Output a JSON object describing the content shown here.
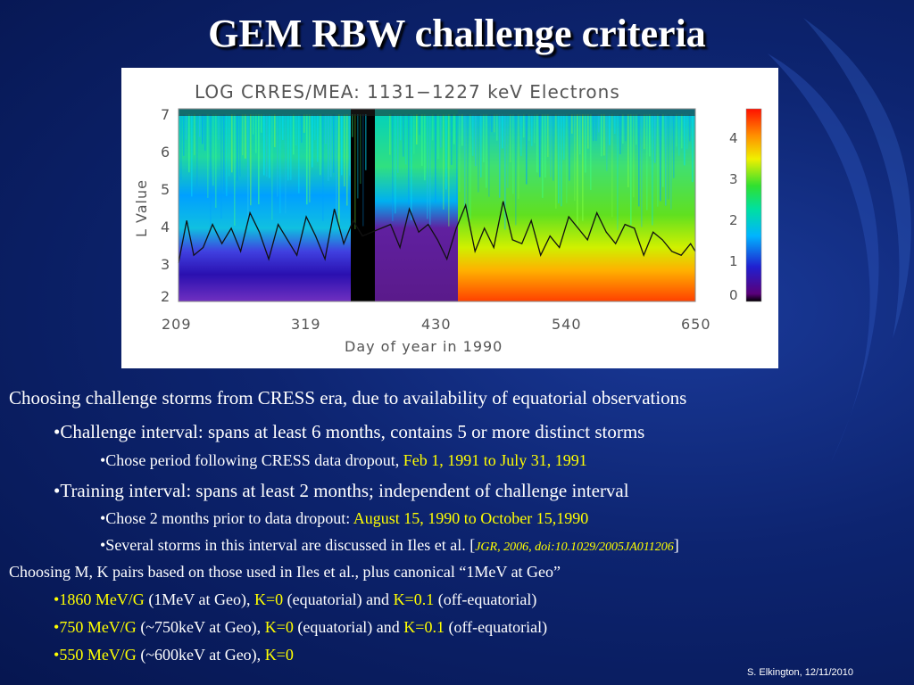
{
  "slide": {
    "title": "GEM RBW challenge criteria",
    "footer": "S. Elkington, 12/11/2010"
  },
  "figure": {
    "title": "LOG CRRES/MEA: 1131−1227 keV Electrons",
    "ylabel": "L Value",
    "xlabel": "Day of year in 1990",
    "y_ticks": [
      "7",
      "6",
      "5",
      "4",
      "3",
      "2"
    ],
    "x_ticks": [
      "209",
      "319",
      "430",
      "540",
      "650"
    ],
    "colorbar_ticks": [
      "4",
      "3",
      "2",
      "1",
      "0"
    ]
  },
  "chart_data": {
    "type": "heatmap",
    "title": "LOG CRRES/MEA: 1131−1227 keV Electrons",
    "xlabel": "Day of year in 1990",
    "ylabel": "L Value",
    "xlim": [
      209,
      650
    ],
    "ylim": [
      2,
      7
    ],
    "colorbar_range": [
      0,
      4.8
    ],
    "x_ticks": [
      209,
      319,
      430,
      540,
      650
    ],
    "y_ticks": [
      2,
      3,
      4,
      5,
      6,
      7
    ],
    "colorbar_ticks": [
      0,
      1,
      2,
      3,
      4
    ],
    "data_gap": [
      370,
      387
    ],
    "overlay_line": {
      "x": [
        209,
        216,
        222,
        230,
        238,
        246,
        254,
        262,
        270,
        278,
        286,
        294,
        302,
        310,
        318,
        326,
        334,
        342,
        350,
        358,
        366,
        390,
        398,
        406,
        414,
        422,
        430,
        438,
        446,
        454,
        462,
        470,
        478,
        486,
        494,
        502,
        510,
        518,
        526,
        534,
        542,
        550,
        558,
        566,
        574,
        582,
        590,
        598,
        606,
        614,
        622,
        630,
        638,
        646,
        650
      ],
      "y": [
        3.0,
        4.1,
        3.2,
        3.4,
        4.0,
        3.5,
        3.9,
        3.3,
        4.3,
        3.8,
        3.1,
        4.0,
        3.6,
        3.2,
        4.2,
        3.7,
        3.1,
        4.4,
        3.5,
        4.1,
        3.7,
        4.0,
        3.4,
        4.4,
        3.8,
        4.0,
        3.6,
        3.1,
        3.9,
        4.5,
        3.3,
        3.9,
        3.4,
        4.6,
        3.6,
        3.5,
        4.1,
        3.2,
        3.7,
        3.4,
        4.2,
        3.9,
        3.6,
        4.3,
        3.8,
        3.5,
        4.0,
        3.9,
        3.2,
        3.8,
        3.6,
        3.3,
        3.2,
        3.5,
        3.3
      ]
    }
  },
  "bullets": {
    "b1": "Choosing challenge storms from CRESS era, due to availability of  equatorial observations",
    "b2": "•Challenge interval: spans at least 6 months, contains 5 or more distinct storms",
    "b3_pre": "•Chose period following CRESS data dropout, ",
    "b3_hl": "Feb 1, 1991 to July 31, 1991",
    "b4": "•Training interval: spans at least 2 months; independent of  challenge interval",
    "b5_pre": "•Chose 2 months prior to data dropout: ",
    "b5_hl": "August 15, 1990 to October 15,1990",
    "b6_pre": "•Several storms in this interval are discussed in Iles et al. [",
    "b6_ref": "JGR, 2006, doi:10.1029/2005JA011206",
    "b6_post": "]",
    "b7": "Choosing M, K pairs based on those used in Iles et al., plus canonical “1MeV at Geo”",
    "b8_bullet": "•",
    "b8_m": "1860 MeV/G",
    "b8_mid": " (1MeV at Geo), ",
    "b8_k1": "K=0",
    "b8_and": " (equatorial) and ",
    "b8_k2": "K=0.1",
    "b8_end": " (off-equatorial)",
    "b9_bullet": "•",
    "b9_m": "750 MeV/G",
    "b9_mid": " (~750keV at Geo), ",
    "b9_k1": "K=0",
    "b9_and": " (equatorial) and ",
    "b9_k2": "K=0.1",
    "b9_end": " (off-equatorial)",
    "b10_bullet": "•",
    "b10_m": "550 MeV/G",
    "b10_mid": " (~600keV at Geo), ",
    "b10_k1": "K=0"
  }
}
